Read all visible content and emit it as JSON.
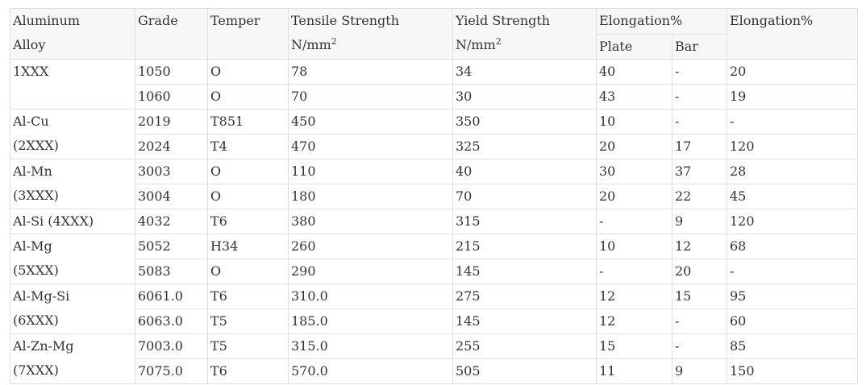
{
  "table": {
    "headers": {
      "alloy": [
        "Aluminum",
        "Alloy"
      ],
      "grade": "Grade",
      "temper": "Temper",
      "tensile": {
        "line1": "Tensile Strength",
        "unit": "N/mm",
        "sup": "2"
      },
      "yield": {
        "line1": "Yield Strength",
        "unit": "N/mm",
        "sup": "2"
      },
      "elongation_group": "Elongation%",
      "plate": "Plate",
      "bar": "Bar",
      "elongation": "Elongation%"
    },
    "groups": [
      {
        "label": [
          "1XXX"
        ],
        "rows": [
          {
            "grade": "1050",
            "temper": "O",
            "tensile": "78",
            "yield": "34",
            "plate": "40",
            "bar": "-",
            "elong": "20"
          },
          {
            "grade": "1060",
            "temper": "O",
            "tensile": "70",
            "yield": "30",
            "plate": "43",
            "bar": "-",
            "elong": "19"
          }
        ]
      },
      {
        "label": [
          "Al-Cu",
          "(2XXX)"
        ],
        "rows": [
          {
            "grade": "2019",
            "temper": "T851",
            "tensile": "450",
            "yield": "350",
            "plate": "10",
            "bar": "-",
            "elong": "-"
          },
          {
            "grade": "2024",
            "temper": "T4",
            "tensile": "470",
            "yield": "325",
            "plate": "20",
            "bar": "17",
            "elong": "120"
          }
        ]
      },
      {
        "label": [
          "Al-Mn",
          "(3XXX)"
        ],
        "rows": [
          {
            "grade": "3003",
            "temper": "O",
            "tensile": "110",
            "yield": "40",
            "plate": "30",
            "bar": "37",
            "elong": "28"
          },
          {
            "grade": "3004",
            "temper": "O",
            "tensile": "180",
            "yield": "70",
            "plate": "20",
            "bar": "22",
            "elong": "45"
          }
        ]
      },
      {
        "label": [
          "Al-Si (4XXX)"
        ],
        "rows": [
          {
            "grade": "4032",
            "temper": "T6",
            "tensile": "380",
            "yield": "315",
            "plate": "-",
            "bar": "9",
            "elong": "120"
          }
        ]
      },
      {
        "label": [
          "Al-Mg",
          "(5XXX)"
        ],
        "rows": [
          {
            "grade": "5052",
            "temper": "H34",
            "tensile": "260",
            "yield": "215",
            "plate": "10",
            "bar": "12",
            "elong": "68"
          },
          {
            "grade": "5083",
            "temper": "O",
            "tensile": "290",
            "yield": "145",
            "plate": "-",
            "bar": "20",
            "elong": "-"
          }
        ]
      },
      {
        "label": [
          "Al-Mg-Si",
          "(6XXX)"
        ],
        "rows": [
          {
            "grade": "6061.0",
            "temper": "T6",
            "tensile": "310.0",
            "yield": "275",
            "plate": "12",
            "bar": "15",
            "elong": "95"
          },
          {
            "grade": "6063.0",
            "temper": "T5",
            "tensile": "185.0",
            "yield": "145",
            "plate": "12",
            "bar": "-",
            "elong": "60"
          }
        ]
      },
      {
        "label": [
          "Al-Zn-Mg",
          "(7XXX)"
        ],
        "rows": [
          {
            "grade": "7003.0",
            "temper": "T5",
            "tensile": "315.0",
            "yield": "255",
            "plate": "15",
            "bar": "-",
            "elong": "85"
          },
          {
            "grade": "7075.0",
            "temper": "T6",
            "tensile": "570.0",
            "yield": "505",
            "plate": "11",
            "bar": "9",
            "elong": "150"
          }
        ]
      }
    ]
  }
}
